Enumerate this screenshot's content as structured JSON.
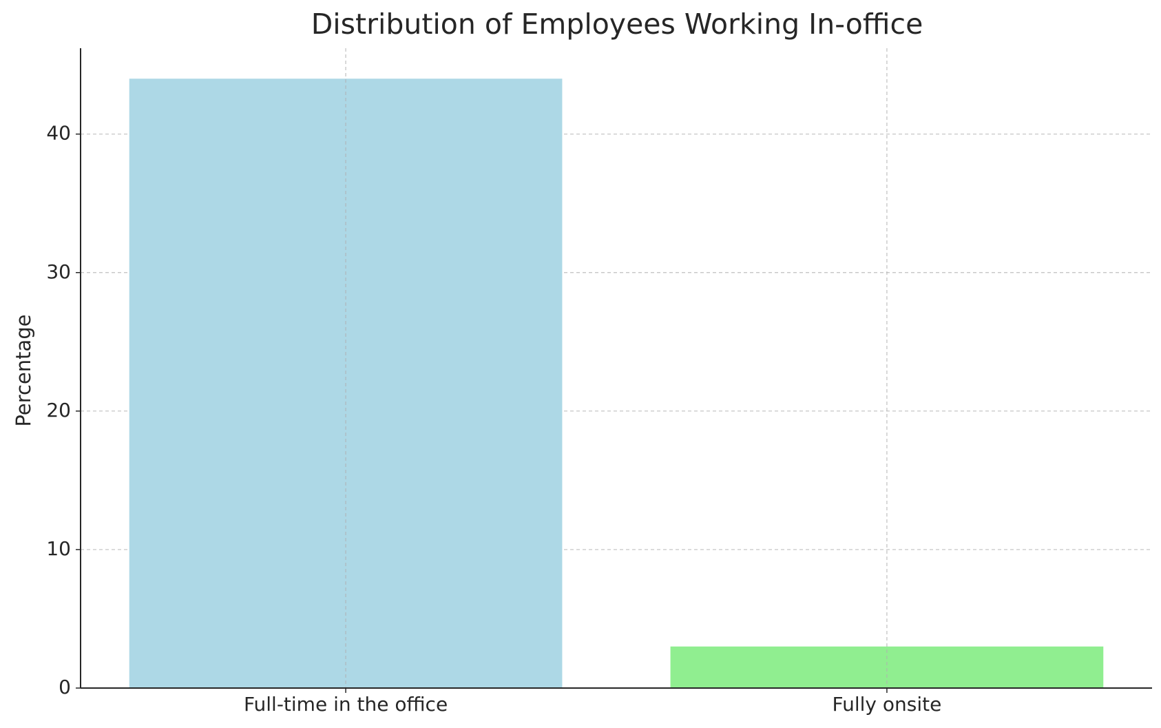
{
  "chart_data": {
    "type": "bar",
    "title": "Distribution of Employees Working In-office",
    "y_label": "Percentage",
    "categories": [
      "Full-time in the office",
      "Fully onsite"
    ],
    "values": [
      44,
      3
    ],
    "colors": [
      "#add8e6",
      "#90ee90"
    ],
    "ylim": [
      0,
      46.2
    ],
    "yticks": [
      0,
      10,
      20,
      30,
      40
    ],
    "grid": true
  }
}
